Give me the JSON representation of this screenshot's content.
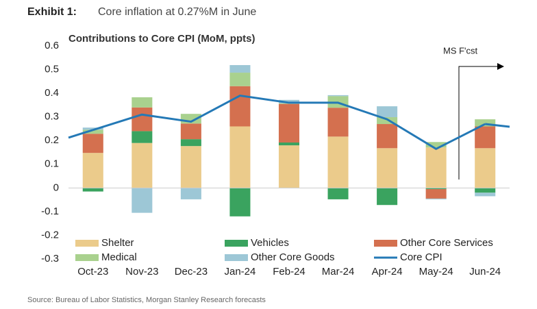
{
  "header": {
    "label": "Exhibit 1:",
    "title": "Core inflation at 0.27%M in June"
  },
  "source": "Source: Bureau of Labor Statistics, Morgan Stanley Research forecasts",
  "chart_data": {
    "type": "bar",
    "stacked": true,
    "title": "Contributions to Core CPI (MoM, ppts)",
    "annotation": "MS F'cst",
    "categories": [
      "Oct-23",
      "Nov-23",
      "Dec-23",
      "Jan-24",
      "Feb-24",
      "Mar-24",
      "Apr-24",
      "May-24",
      "Jun-24"
    ],
    "series": [
      {
        "name": "Shelter",
        "color": "#ebcb8b",
        "values": [
          0.148,
          0.19,
          0.177,
          0.26,
          0.18,
          0.217,
          0.168,
          0.171,
          0.168
        ]
      },
      {
        "name": "Vehicles",
        "color": "#3aa35f",
        "values": [
          -0.015,
          0.05,
          0.029,
          -0.12,
          0.012,
          -0.048,
          -0.072,
          -0.005,
          -0.02
        ]
      },
      {
        "name": "Other Core Services",
        "color": "#d4704f",
        "values": [
          0.081,
          0.1,
          0.066,
          0.17,
          0.163,
          0.122,
          0.102,
          -0.04,
          0.092
        ]
      },
      {
        "name": "Medical",
        "color": "#a9d18e",
        "values": [
          0.017,
          0.043,
          0.041,
          0.057,
          0.003,
          0.049,
          0.029,
          0.023,
          0.03
        ]
      },
      {
        "name": "Other Core Goods",
        "color": "#9dc7d6",
        "values": [
          0.009,
          -0.105,
          -0.048,
          0.032,
          0.014,
          0.004,
          0.046,
          -0.003,
          -0.015
        ]
      },
      {
        "name": "Core CPI",
        "type": "line",
        "color": "#2479b6",
        "values": [
          0.245,
          0.31,
          0.28,
          0.39,
          0.36,
          0.36,
          0.29,
          0.165,
          0.27
        ]
      }
    ],
    "ylim": [
      -0.3,
      0.6
    ],
    "yticks": [
      -0.3,
      -0.2,
      -0.1,
      0,
      0.1,
      0.2,
      0.3,
      0.4,
      0.5,
      0.6
    ],
    "grid": false
  }
}
